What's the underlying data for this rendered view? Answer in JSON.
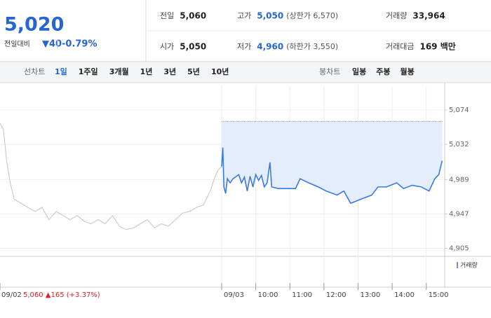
{
  "header": {
    "price": "5,020",
    "change_label": "전일대비",
    "change": "▼40",
    "change_rate": "-0.79%",
    "stats": [
      {
        "label": "전일",
        "value": "5,060"
      },
      {
        "label": "고가",
        "value": "5,050",
        "note": "(상한가 6,570)"
      },
      {
        "label": "거래량",
        "value": "33,964"
      },
      {
        "label": "시가",
        "value": "5,050"
      },
      {
        "label": "저가",
        "value": "4,960",
        "note": "(하한가 3,550)"
      },
      {
        "label": "거래대금",
        "value": "169 백만"
      }
    ]
  },
  "tabs": {
    "line_label": "선차트",
    "line": [
      "1일",
      "1주일",
      "3개월",
      "1년",
      "3년",
      "5년",
      "10년"
    ],
    "selected": "1일",
    "candle_label": "봉차트",
    "candle": [
      "일봉",
      "주봉",
      "월봉"
    ]
  },
  "chart_data": {
    "type": "line",
    "baseline": 5060,
    "ylim": [
      4896,
      5104
    ],
    "yticks": [
      {
        "value": 4905,
        "label": "4,905"
      },
      {
        "value": 4947,
        "label": "4,947"
      },
      {
        "value": 4989,
        "label": "4,989"
      },
      {
        "value": 5032,
        "label": "5,032"
      },
      {
        "value": 5074,
        "label": "5,074"
      }
    ],
    "xlim": [
      0,
      780
    ],
    "xticks": [
      {
        "value": 0,
        "label": "09/02"
      },
      {
        "value": 390,
        "label": "09/03"
      },
      {
        "value": 450,
        "label": "10:00"
      },
      {
        "value": 510,
        "label": "11:00"
      },
      {
        "value": 570,
        "label": "12:00"
      },
      {
        "value": 630,
        "label": "13:00"
      },
      {
        "value": 690,
        "label": "14:00"
      },
      {
        "value": 750,
        "label": "15:00"
      }
    ],
    "prev_summary": "5,060 ▲165 (+3.37%)",
    "volume_label": "거래량",
    "series": [
      {
        "color": "#cccccc",
        "x": [
          0,
          6,
          12,
          18,
          25,
          37,
          49,
          62,
          74,
          86,
          99,
          111,
          123,
          136,
          148,
          160,
          173,
          185,
          198,
          210,
          222,
          235,
          247,
          259,
          272,
          284,
          296,
          309,
          321,
          333,
          346,
          358,
          370,
          377,
          383,
          390
        ],
        "values": [
          5058,
          5050,
          5010,
          4985,
          4965,
          4960,
          4955,
          4950,
          4955,
          4940,
          4950,
          4945,
          4940,
          4945,
          4938,
          4935,
          4940,
          4935,
          4945,
          4932,
          4928,
          4930,
          4935,
          4940,
          4930,
          4935,
          4932,
          4940,
          4948,
          4950,
          4955,
          4958,
          4975,
          4990,
          5000,
          5005
        ]
      },
      {
        "color": "#3b78e7",
        "fill": "#e4edfb",
        "x": [
          390,
          392,
          394,
          397,
          400,
          405,
          410,
          420,
          425,
          430,
          435,
          440,
          445,
          450,
          455,
          460,
          465,
          470,
          475,
          478,
          490,
          505,
          520,
          528,
          543,
          560,
          574,
          593,
          605,
          617,
          635,
          654,
          665,
          680,
          698,
          710,
          725,
          741,
          755,
          765,
          772,
          778
        ],
        "values": [
          5005,
          5028,
          4980,
          4972,
          4990,
          4985,
          4990,
          4995,
          4985,
          4992,
          4975,
          4993,
          4980,
          4995,
          4988,
          4994,
          4980,
          4985,
          5010,
          4980,
          4978,
          4978,
          4978,
          4990,
          4985,
          4980,
          4975,
          4970,
          4975,
          4960,
          4965,
          4970,
          4980,
          4980,
          4985,
          4978,
          4982,
          4980,
          4975,
          4990,
          4995,
          5012
        ]
      }
    ]
  }
}
